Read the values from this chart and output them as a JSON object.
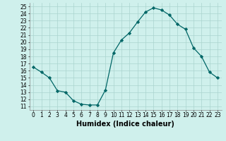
{
  "x": [
    0,
    1,
    2,
    3,
    4,
    5,
    6,
    7,
    8,
    9,
    10,
    11,
    12,
    13,
    14,
    15,
    16,
    17,
    18,
    19,
    20,
    21,
    22,
    23
  ],
  "y": [
    16.5,
    15.8,
    15.0,
    13.2,
    13.0,
    11.8,
    11.3,
    11.2,
    11.2,
    13.3,
    18.5,
    20.3,
    21.3,
    22.8,
    24.2,
    24.8,
    24.5,
    23.8,
    22.5,
    21.8,
    19.2,
    18.0,
    15.8,
    15.0
  ],
  "line_color": "#006666",
  "marker": "D",
  "markersize": 2.2,
  "linewidth": 0.9,
  "xlabel": "Humidex (Indice chaleur)",
  "xlim": [
    -0.5,
    23.5
  ],
  "ylim": [
    10.5,
    25.5
  ],
  "yticks": [
    11,
    12,
    13,
    14,
    15,
    16,
    17,
    18,
    19,
    20,
    21,
    22,
    23,
    24,
    25
  ],
  "xticks": [
    0,
    1,
    2,
    3,
    4,
    5,
    6,
    7,
    8,
    9,
    10,
    11,
    12,
    13,
    14,
    15,
    16,
    17,
    18,
    19,
    20,
    21,
    22,
    23
  ],
  "xtick_labels": [
    "0",
    "1",
    "2",
    "3",
    "4",
    "5",
    "6",
    "7",
    "8",
    "9",
    "10",
    "11",
    "12",
    "13",
    "14",
    "15",
    "16",
    "17",
    "18",
    "19",
    "20",
    "21",
    "22",
    "23"
  ],
  "background_color": "#cff0ec",
  "grid_color": "#aad4ce",
  "tick_fontsize": 5.5,
  "xlabel_fontsize": 7.0
}
